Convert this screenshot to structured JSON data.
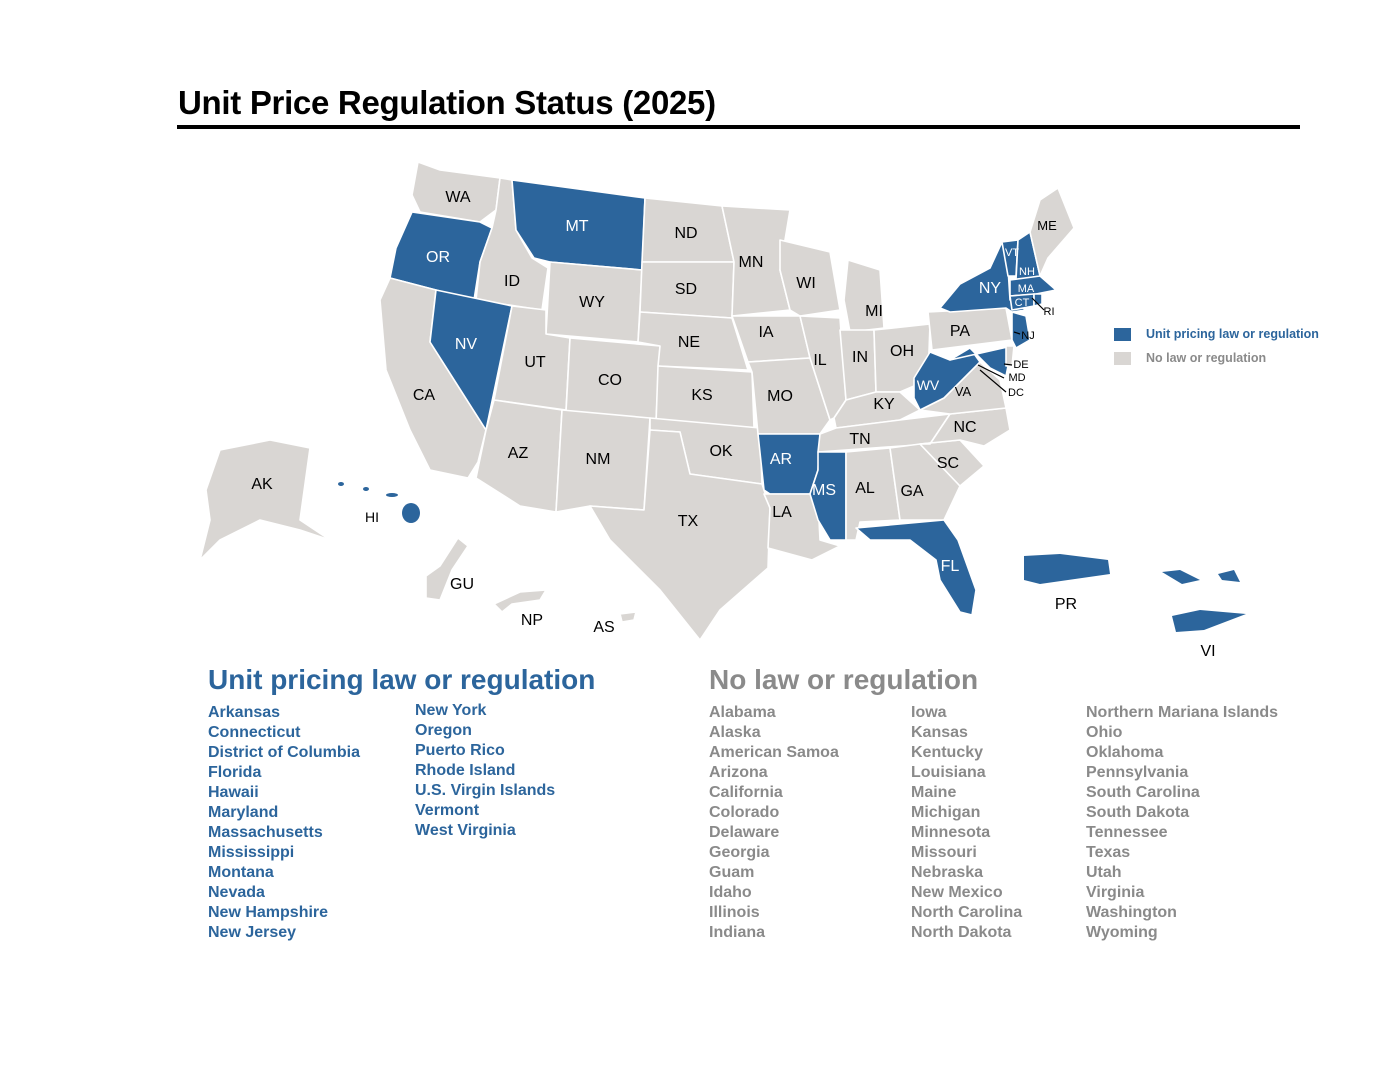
{
  "title": "Unit Price Regulation Status (2025)",
  "colors": {
    "regulated": "#2C659C",
    "none": "#D9D6D3",
    "none_text": "#8A8A8A",
    "title": "#000000"
  },
  "legend": {
    "regulated": "Unit pricing law or regulation",
    "none": "No law or regulation"
  },
  "lists": {
    "regulated": {
      "heading": "Unit pricing law or regulation",
      "col1": [
        "Arkansas",
        "Connecticut",
        "District of Columbia",
        "Florida",
        "Hawaii",
        "Maryland",
        "Massachusetts",
        "Mississippi",
        "Montana",
        "Nevada",
        "New Hampshire",
        "New Jersey"
      ],
      "col2": [
        "New York",
        "Oregon",
        "Puerto Rico",
        "Rhode Island",
        "U.S. Virgin Islands",
        "Vermont",
        "West Virginia"
      ]
    },
    "none": {
      "heading": "No law or regulation",
      "col1": [
        "Alabama",
        "Alaska",
        "American Samoa",
        "Arizona",
        "California",
        "Colorado",
        "Delaware",
        "Georgia",
        "Guam",
        "Idaho",
        "Illinois",
        "Indiana"
      ],
      "col2": [
        "Iowa",
        "Kansas",
        "Kentucky",
        "Louisiana",
        "Maine",
        "Michigan",
        "Minnesota",
        "Missouri",
        "Nebraska",
        "New Mexico",
        "North Carolina",
        "North Dakota"
      ],
      "col3": [
        "Northern Mariana Islands",
        "Ohio",
        "Oklahoma",
        "Pennsylvania",
        "South Carolina",
        "South Dakota",
        "Tennessee",
        "Texas",
        "Utah",
        "Virginia",
        "Washington",
        "Wyoming"
      ]
    }
  },
  "map_labels": {
    "WA": "WA",
    "OR": "OR",
    "CA": "CA",
    "ID": "ID",
    "NV": "NV",
    "MT": "MT",
    "WY": "WY",
    "UT": "UT",
    "AZ": "AZ",
    "CO": "CO",
    "NM": "NM",
    "ND": "ND",
    "SD": "SD",
    "NE": "NE",
    "KS": "KS",
    "OK": "OK",
    "TX": "TX",
    "MN": "MN",
    "IA": "IA",
    "MO": "MO",
    "AR": "AR",
    "LA": "LA",
    "WI": "WI",
    "IL": "IL",
    "MI": "MI",
    "IN": "IN",
    "OH": "OH",
    "KY": "KY",
    "TN": "TN",
    "MS": "MS",
    "AL": "AL",
    "GA": "GA",
    "FL": "FL",
    "SC": "SC",
    "NC": "NC",
    "VA": "VA",
    "WV": "WV",
    "PA": "PA",
    "NY": "NY",
    "VT": "VT",
    "NH": "NH",
    "ME": "ME",
    "MA": "MA",
    "CT": "CT",
    "RI": "RI",
    "NJ": "NJ",
    "DE": "DE",
    "MD": "MD",
    "DC": "DC",
    "AK": "AK",
    "HI": "HI",
    "GU": "GU",
    "NP": "NP",
    "AS": "AS",
    "PR": "PR",
    "VI": "VI"
  },
  "chart_data": {
    "type": "choropleth",
    "title": "Unit Price Regulation Status (2025)",
    "legend": [
      "Unit pricing law or regulation",
      "No law or regulation"
    ],
    "regulated": [
      "AR",
      "CT",
      "DC",
      "FL",
      "HI",
      "MD",
      "MA",
      "MS",
      "MT",
      "NV",
      "NH",
      "NJ",
      "NY",
      "OR",
      "PR",
      "RI",
      "VI",
      "VT",
      "WV"
    ],
    "not_regulated": [
      "AL",
      "AK",
      "AS",
      "AZ",
      "CA",
      "CO",
      "DE",
      "GA",
      "GU",
      "ID",
      "IL",
      "IN",
      "IA",
      "KS",
      "KY",
      "LA",
      "ME",
      "MI",
      "MN",
      "MO",
      "NE",
      "NM",
      "NC",
      "ND",
      "NP",
      "OH",
      "OK",
      "PA",
      "SC",
      "SD",
      "TN",
      "TX",
      "UT",
      "VA",
      "WA",
      "WY"
    ],
    "counts": {
      "regulated": 19,
      "not_regulated": 36
    }
  }
}
